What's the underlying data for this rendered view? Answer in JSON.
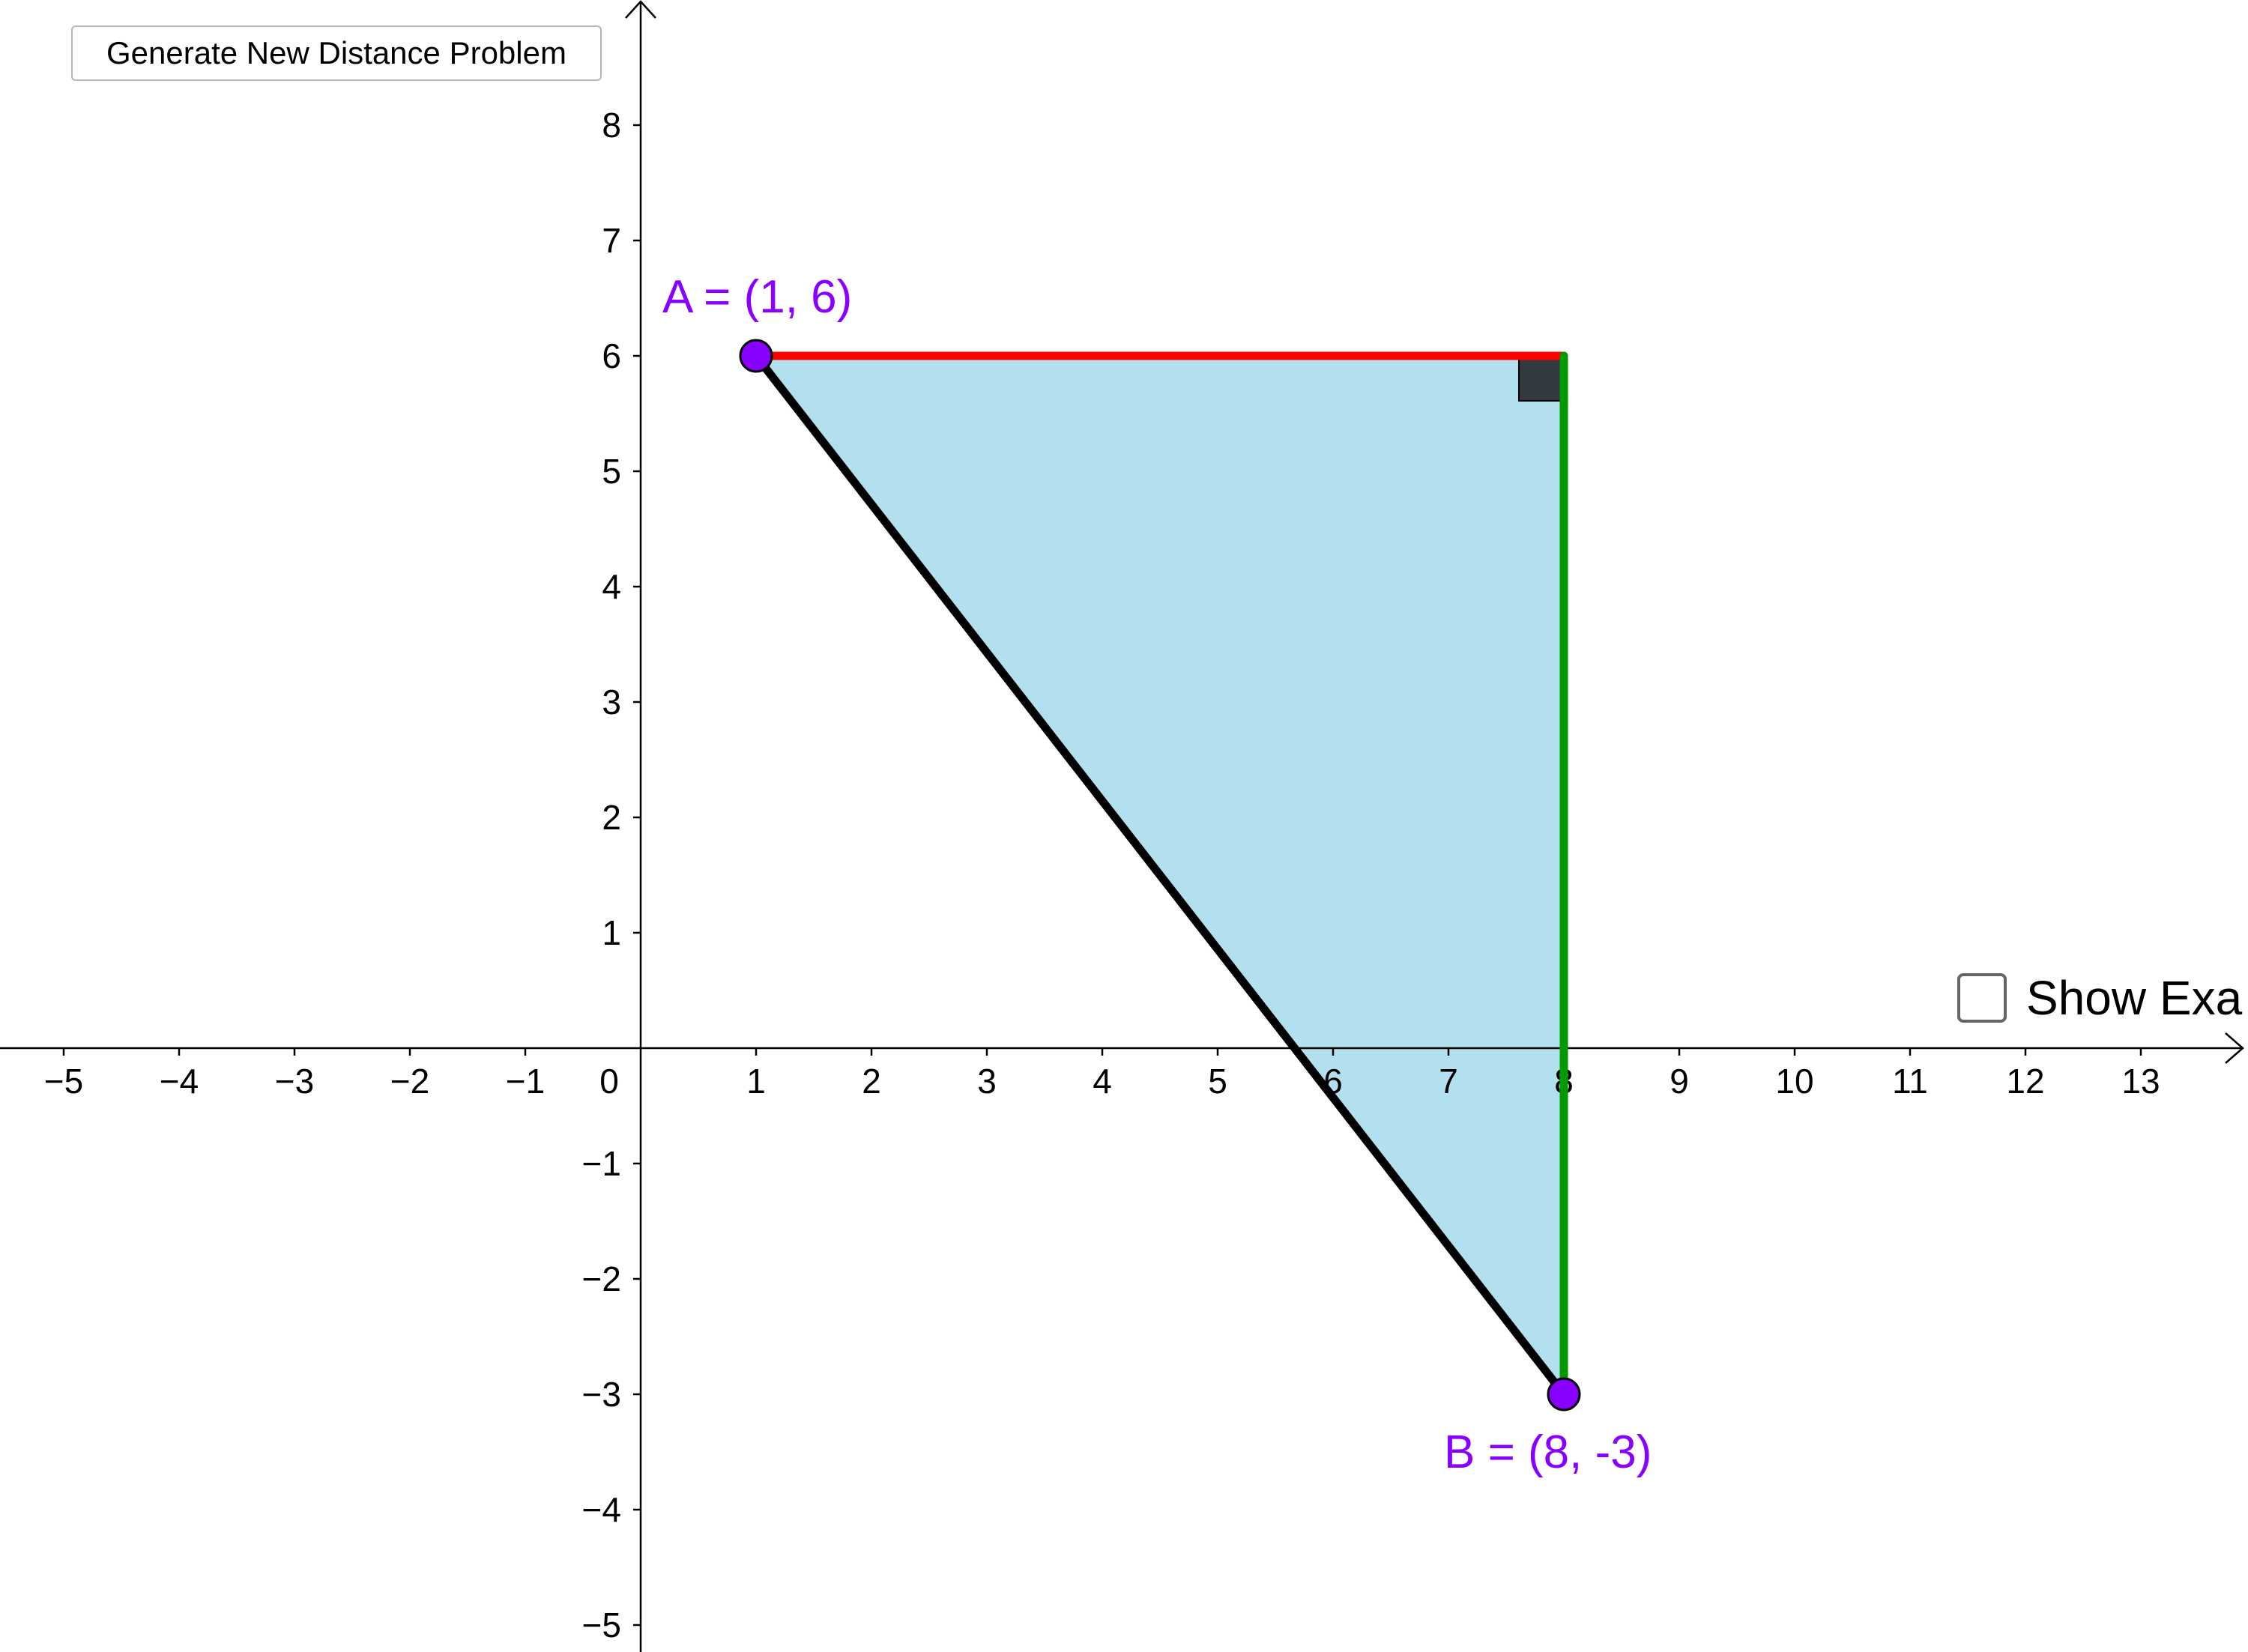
{
  "controls": {
    "generate_button_label": "Generate New Distance Problem",
    "show_checkbox_label": "Show Exa",
    "show_checkbox_checked": false
  },
  "axes": {
    "x_ticks": [
      "−5",
      "−4",
      "−3",
      "−2",
      "−1",
      "0",
      "1",
      "2",
      "3",
      "4",
      "5",
      "6",
      "7",
      "8",
      "9",
      "10",
      "11",
      "12",
      "13"
    ],
    "y_ticks_positive": [
      "1",
      "2",
      "3",
      "4",
      "5",
      "6",
      "7",
      "8"
    ],
    "y_ticks_negative": [
      "−1",
      "−2",
      "−3",
      "−4",
      "−5"
    ],
    "xlim": [
      -5.6,
      13.9
    ],
    "ylim": [
      -5.3,
      9.1
    ]
  },
  "points": {
    "A": {
      "label": "A = (1, 6)",
      "x": 1,
      "y": 6
    },
    "B": {
      "label": "B = (8, -3)",
      "x": 8,
      "y": -3
    }
  },
  "corner": {
    "x": 8,
    "y": 6
  },
  "colors": {
    "triangle_fill": "#b3e0ee",
    "horizontal_leg": "#ff0000",
    "vertical_leg": "#009900",
    "hypotenuse": "#000000",
    "point_fill": "#8800ff",
    "label_color": "#8800ff",
    "right_angle_marker": "#333a3f"
  }
}
